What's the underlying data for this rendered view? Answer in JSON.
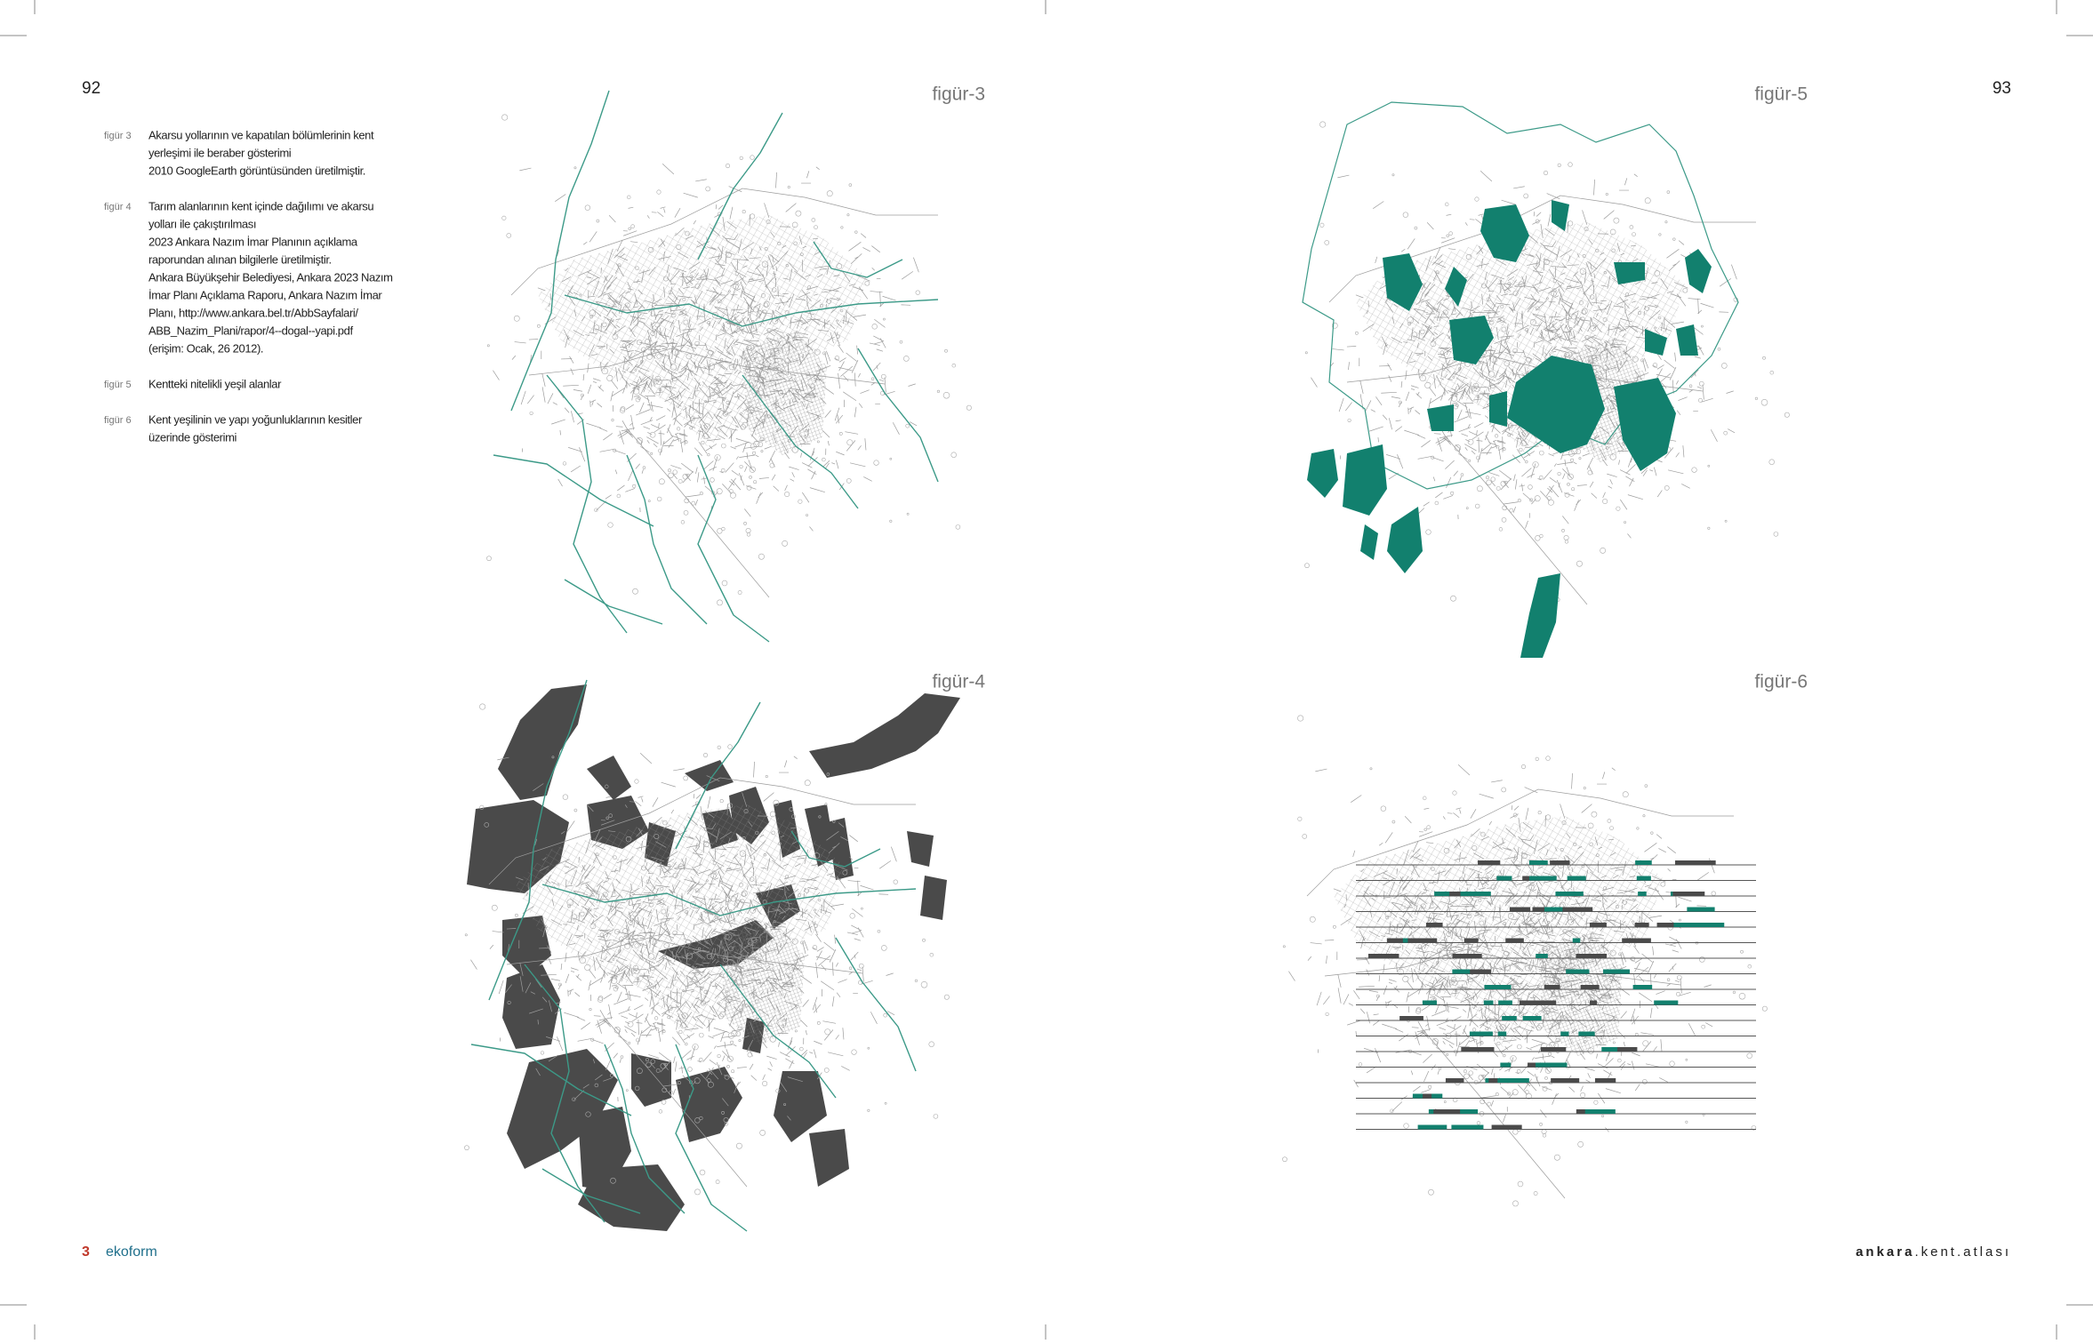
{
  "pages": {
    "left_number": "92",
    "right_number": "93"
  },
  "captions": [
    {
      "label": "figür 3",
      "lines": [
        "Akarsu yollarının ve kapatılan bölümlerinin kent",
        "yerleşimi ile beraber gösterimi",
        "2010 GoogleEarth görüntüsünden üretilmiştir."
      ]
    },
    {
      "label": "figür 4",
      "lines": [
        "Tarım alanlarının kent içinde dağılımı ve akarsu",
        "yolları ile çakıştırılması",
        "2023 Ankara Nazım İmar Planının açıklama",
        "raporundan alınan bilgilerle üretilmiştir.",
        "Ankara Büyükşehir Belediyesi, Ankara 2023 Nazım",
        "İmar Planı Açıklama Raporu, Ankara Nazım İmar",
        "Planı, http://www.ankara.bel.tr/AbbSayfalari/",
        "ABB_Nazim_Plani/rapor/4--dogal--yapi.pdf",
        "(erişim: Ocak, 26 2012)."
      ]
    },
    {
      "label": "figür 5",
      "lines": [
        "Kentteki nitelikli yeşil alanlar"
      ]
    },
    {
      "label": "figür 6",
      "lines": [
        "Kent yeşilinin ve yapı yoğunluklarının kesitler",
        "üzerinde gösterimi"
      ]
    }
  ],
  "figures": [
    {
      "label": "figür-3"
    },
    {
      "label": "figür-5"
    },
    {
      "label": "figür-4"
    },
    {
      "label": "figür-6"
    }
  ],
  "footer": {
    "page": "3",
    "brand": "ekoform",
    "publication_bold": "ankara",
    "publication_rest": ".kent.atlası"
  }
}
